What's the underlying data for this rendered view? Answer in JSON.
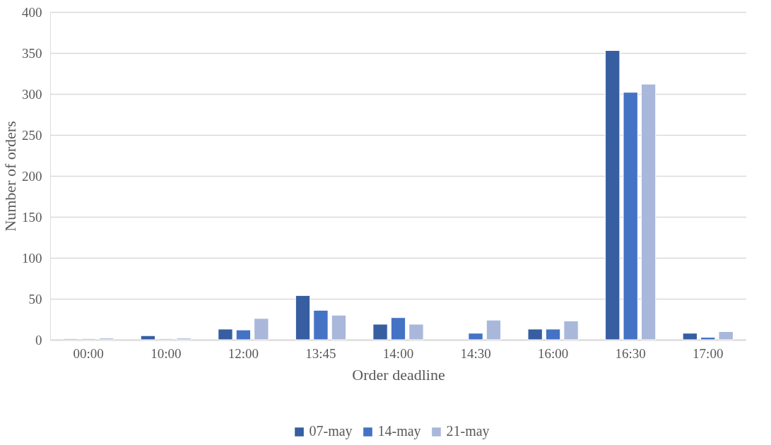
{
  "chart_data": {
    "type": "bar",
    "xlabel": "Order deadline",
    "ylabel": "Number of orders",
    "categories": [
      "00:00",
      "10:00",
      "12:00",
      "13:45",
      "14:00",
      "14:30",
      "16:00",
      "16:30",
      "17:00"
    ],
    "series": [
      {
        "name": "07-may",
        "color": "#365ea1",
        "values": [
          1,
          5,
          13,
          54,
          19,
          null,
          13,
          353,
          8
        ]
      },
      {
        "name": "14-may",
        "color": "#4472c4",
        "values": [
          1,
          1,
          12,
          36,
          27,
          8,
          13,
          302,
          3
        ]
      },
      {
        "name": "21-may",
        "color": "#a9b7db",
        "values": [
          2,
          2,
          26,
          30,
          19,
          24,
          23,
          312,
          10
        ]
      }
    ],
    "ylim": [
      0,
      400
    ],
    "yticks": [
      0,
      50,
      100,
      150,
      200,
      250,
      300,
      350,
      400
    ],
    "grid": "y",
    "legend": "bottom"
  }
}
